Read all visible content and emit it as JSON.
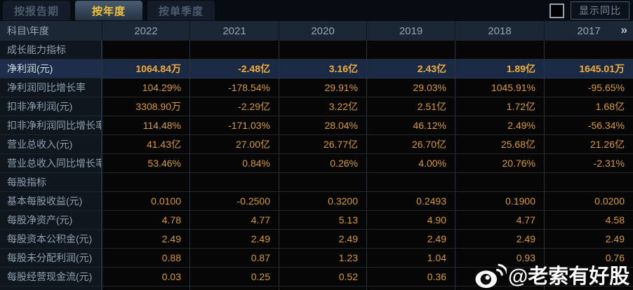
{
  "tab_bar": {
    "tabs": [
      {
        "label": "按报告期",
        "active": false
      },
      {
        "label": "按年度",
        "active": true
      },
      {
        "label": "按单季度",
        "active": false
      }
    ],
    "show_yoy": {
      "label": "显示同比",
      "checked": false
    }
  },
  "table": {
    "corner_header": "科目\\年度",
    "year_columns": [
      "2022",
      "2021",
      "2020",
      "2019",
      "2018",
      "2017"
    ],
    "more_columns_icon": "»",
    "rows": [
      {
        "type": "section",
        "label": "成长能力指标",
        "values": [
          "",
          "",
          "",
          "",
          "",
          ""
        ]
      },
      {
        "type": "data",
        "label": "净利润(元)",
        "highlight": true,
        "values": [
          "1064.84万",
          "-2.48亿",
          "3.16亿",
          "2.43亿",
          "1.89亿",
          "1645.01万"
        ]
      },
      {
        "type": "data",
        "label": "净利润同比增长率",
        "values": [
          "104.29%",
          "-178.54%",
          "29.91%",
          "29.03%",
          "1045.91%",
          "-95.65%"
        ]
      },
      {
        "type": "data",
        "label": "扣非净利润(元)",
        "values": [
          "3308.90万",
          "-2.29亿",
          "3.22亿",
          "2.51亿",
          "1.72亿",
          "1.68亿"
        ]
      },
      {
        "type": "data",
        "label": "扣非净利润同比增长率",
        "values": [
          "114.48%",
          "-171.03%",
          "28.04%",
          "46.12%",
          "2.49%",
          "-56.34%"
        ]
      },
      {
        "type": "data",
        "label": "营业总收入(元)",
        "values": [
          "41.43亿",
          "27.00亿",
          "26.77亿",
          "26.70亿",
          "25.68亿",
          "21.26亿"
        ]
      },
      {
        "type": "data",
        "label": "营业总收入同比增长率",
        "values": [
          "53.46%",
          "0.84%",
          "0.26%",
          "4.00%",
          "20.76%",
          "-2.31%"
        ]
      },
      {
        "type": "section",
        "label": "每股指标",
        "values": [
          "",
          "",
          "",
          "",
          "",
          ""
        ]
      },
      {
        "type": "data",
        "label": "基本每股收益(元)",
        "values": [
          "0.0100",
          "-0.2500",
          "0.3200",
          "0.2493",
          "0.1900",
          "0.0200"
        ]
      },
      {
        "type": "data",
        "label": "每股净资产(元)",
        "values": [
          "4.78",
          "4.77",
          "5.13",
          "4.90",
          "4.77",
          "4.58"
        ]
      },
      {
        "type": "data",
        "label": "每股资本公积金(元)",
        "values": [
          "2.49",
          "2.49",
          "2.49",
          "2.49",
          "2.49",
          "2.49"
        ]
      },
      {
        "type": "data",
        "label": "每股未分配利润(元)",
        "values": [
          "0.88",
          "0.87",
          "1.23",
          "1.04",
          "0.93",
          "0.76"
        ]
      },
      {
        "type": "data",
        "label": "每股经营现金流(元)",
        "values": [
          "0.03",
          "0.25",
          "0.52",
          "0.36",
          "",
          ""
        ]
      }
    ]
  },
  "watermark": {
    "icon": "weibo-icon",
    "text": "@老索有好股"
  },
  "colors": {
    "value_gold": "#d89a3d",
    "highlight_row_bg": "#1e2d49",
    "active_tab_text": "#f2c43c",
    "header_bg": "#1b2734",
    "label_text": "#8da0b0"
  }
}
